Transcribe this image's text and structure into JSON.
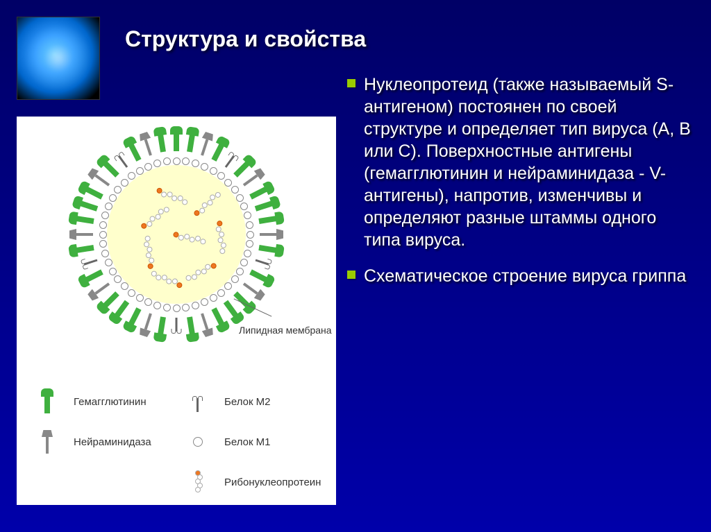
{
  "title": "Структура и свойства",
  "paragraphs": {
    "p1": "Нуклеопротеид (также называемый S-антигеном) постоянен по своей структуре и определяет тип вируса (А, В или С). Поверхностные антигены (гемагглютинин и нейраминидаза - V-антигены), напротив, изменчивы и определяют разные штаммы одного типа вируса.",
    "p2": "Схематическое строение вируса гриппа"
  },
  "diagram": {
    "type": "infographic",
    "background_color": "#ffffff",
    "virus_fill": "#ffffcc",
    "ha_color": "#3fb03f",
    "na_color": "#888888",
    "m2_color": "#666666",
    "m1_border": "#888888",
    "rnp_cap": "#ee7722",
    "lipid_label": "Липидная мембрана",
    "legend": {
      "ha": "Гемагглютинин",
      "na": "Нейраминидаза",
      "m2": "Белок М2",
      "m1": "Белок М1",
      "rnp": "Рибонуклеопротеин"
    }
  },
  "colors": {
    "slide_bg_top": "#000066",
    "slide_bg_bottom": "#0000aa",
    "bullet": "#99cc00",
    "text": "#ffffff"
  },
  "fonts": {
    "title_size_pt": 24,
    "body_size_pt": 19,
    "legend_size_pt": 11
  }
}
